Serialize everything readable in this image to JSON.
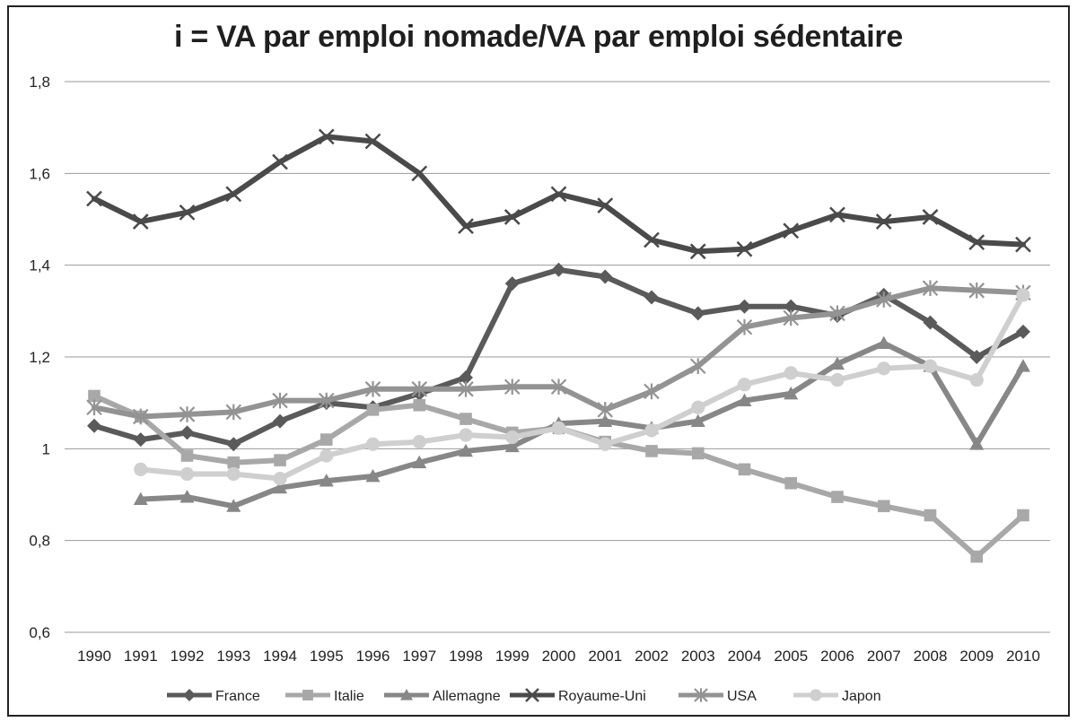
{
  "chart_data": {
    "type": "line",
    "title": "i = VA par emploi nomade/VA par emploi sédentaire",
    "xlabel": "",
    "ylabel": "",
    "x": [
      "1990",
      "1991",
      "1992",
      "1993",
      "1994",
      "1995",
      "1996",
      "1997",
      "1998",
      "1999",
      "2000",
      "2001",
      "2002",
      "2003",
      "2004",
      "2005",
      "2006",
      "2007",
      "2008",
      "2009",
      "2010"
    ],
    "ylim": [
      0.6,
      1.8
    ],
    "yticks": [
      0.6,
      0.8,
      1.0,
      1.2,
      1.4,
      1.6,
      1.8
    ],
    "ytick_labels": [
      "0,6",
      "0,8",
      "1",
      "1,2",
      "1,4",
      "1,6",
      "1,8"
    ],
    "grid": true,
    "legend_position": "bottom",
    "series": [
      {
        "name": "France",
        "marker": "diamond",
        "color": "#5a5a5a",
        "values": [
          1.05,
          1.02,
          1.035,
          1.01,
          1.06,
          1.1,
          1.09,
          1.12,
          1.155,
          1.36,
          1.39,
          1.375,
          1.33,
          1.295,
          1.31,
          1.31,
          1.29,
          1.335,
          1.275,
          1.2,
          1.255
        ]
      },
      {
        "name": "Italie",
        "marker": "square",
        "color": "#a8a8a8",
        "values": [
          1.115,
          1.07,
          0.985,
          0.97,
          0.975,
          1.02,
          1.085,
          1.095,
          1.065,
          1.035,
          1.045,
          1.015,
          0.995,
          0.99,
          0.955,
          0.925,
          0.895,
          0.875,
          0.855,
          0.765,
          0.855
        ]
      },
      {
        "name": "Allemagne",
        "marker": "triangle",
        "color": "#878787",
        "values": [
          null,
          0.89,
          0.895,
          0.875,
          0.915,
          0.93,
          0.94,
          0.97,
          0.995,
          1.005,
          1.055,
          1.06,
          1.045,
          1.06,
          1.105,
          1.12,
          1.185,
          1.23,
          1.18,
          1.01,
          1.18
        ]
      },
      {
        "name": "Royaume-Uni",
        "marker": "x",
        "color": "#4a4a4a",
        "values": [
          1.545,
          1.495,
          1.515,
          1.555,
          1.625,
          1.68,
          1.67,
          1.6,
          1.485,
          1.505,
          1.555,
          1.53,
          1.455,
          1.43,
          1.435,
          1.475,
          1.51,
          1.495,
          1.505,
          1.45,
          1.445
        ]
      },
      {
        "name": "USA",
        "marker": "star",
        "color": "#939393",
        "values": [
          1.09,
          1.07,
          1.075,
          1.08,
          1.105,
          1.105,
          1.13,
          1.13,
          1.13,
          1.135,
          1.135,
          1.085,
          1.125,
          1.18,
          1.265,
          1.285,
          1.295,
          1.325,
          1.35,
          1.345,
          1.34
        ]
      },
      {
        "name": "Japon",
        "marker": "circle",
        "color": "#cfcfcf",
        "values": [
          null,
          0.955,
          0.945,
          0.945,
          0.935,
          0.985,
          1.01,
          1.015,
          1.03,
          1.025,
          1.045,
          1.01,
          1.04,
          1.09,
          1.14,
          1.165,
          1.15,
          1.175,
          1.18,
          1.15,
          1.335
        ]
      }
    ]
  }
}
